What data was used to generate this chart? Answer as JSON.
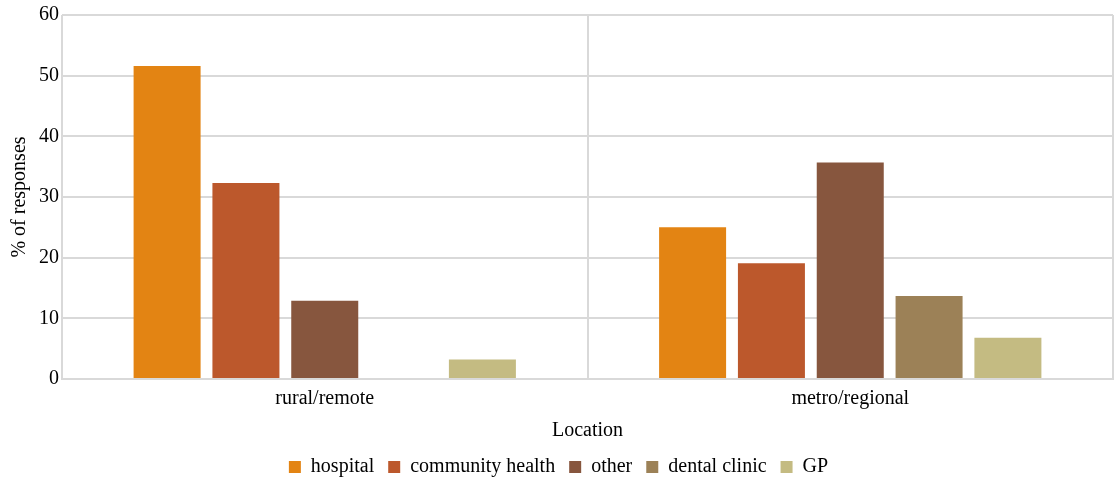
{
  "chart_data": {
    "type": "bar",
    "xlabel": "Location",
    "ylabel": "% of responses",
    "categories": [
      "rural/remote",
      "metro/regional"
    ],
    "series": [
      {
        "name": "hospital",
        "color": "#e38413",
        "values": [
          51.6,
          25.0
        ]
      },
      {
        "name": "community health",
        "color": "#bc582c",
        "values": [
          32.3,
          19.1
        ]
      },
      {
        "name": "other",
        "color": "#87563e",
        "values": [
          12.9,
          35.7
        ]
      },
      {
        "name": "dental clinic",
        "color": "#9c8157",
        "values": [
          0,
          13.7
        ]
      },
      {
        "name": "GP",
        "color": "#c4bb82",
        "values": [
          3.2,
          6.8
        ]
      }
    ],
    "ylim": [
      0,
      60
    ],
    "yticks": [
      0,
      10,
      20,
      30,
      40,
      50,
      60
    ],
    "grid": true,
    "legend": "bottom"
  }
}
